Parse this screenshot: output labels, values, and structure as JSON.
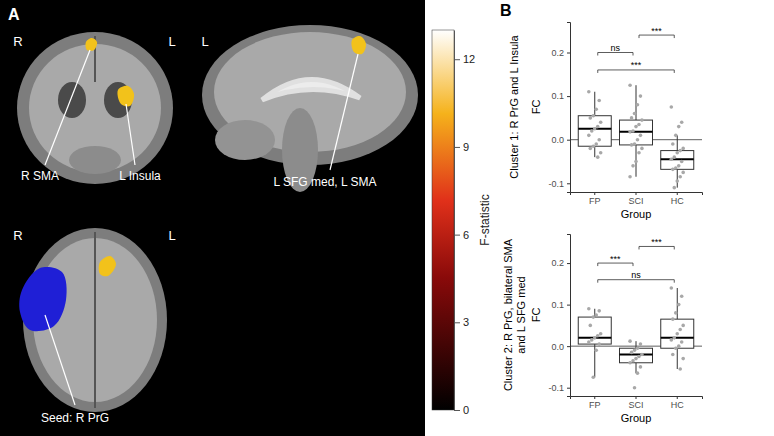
{
  "panel_a": {
    "label": "A",
    "views": [
      {
        "orientation": [
          "R",
          "L"
        ],
        "annotations": [
          "R SMA",
          "L Insula"
        ]
      },
      {
        "orientation": [
          "L"
        ],
        "annotations": [
          "L SFG med, L SMA"
        ]
      },
      {
        "orientation": [
          "R",
          "L"
        ],
        "annotations": [
          "Seed: R PrG"
        ]
      }
    ],
    "colorbar": {
      "label": "F-statistic",
      "range": [
        0,
        13
      ],
      "ticks": [
        0,
        3,
        6,
        9,
        12
      ]
    }
  },
  "panel_b_label": "B",
  "chart_data": [
    {
      "type": "box",
      "title": "Cluster 1: R PrG and L Insula",
      "x_label": "Group",
      "y_label": "FC",
      "categories": [
        "FP",
        "SCI",
        "HC"
      ],
      "ylim": [
        -0.12,
        0.27
      ],
      "yticks": [
        -0.1,
        {
          "value": 0,
          "label": "0.0"
        },
        0.1,
        0.2
      ],
      "hline": 0,
      "color": "#a8a8a8",
      "boxes": [
        {
          "q1": -0.015,
          "median": 0.025,
          "q3": 0.055,
          "whisker_low": -0.04,
          "whisker_high": 0.11
        },
        {
          "q1": -0.012,
          "median": 0.018,
          "q3": 0.045,
          "whisker_low": -0.085,
          "whisker_high": 0.125
        },
        {
          "q1": -0.068,
          "median": -0.045,
          "q3": -0.025,
          "whisker_low": -0.11,
          "whisker_high": 0.01
        }
      ],
      "points": [
        [
          0.11,
          0.09,
          0.07,
          0.055,
          0.05,
          0.04,
          0.03,
          0.025,
          0.02,
          0.01,
          0,
          -0.01,
          -0.015,
          -0.02,
          -0.03,
          -0.04
        ],
        [
          0.125,
          0.1,
          0.08,
          0.06,
          0.05,
          0.045,
          0.035,
          0.03,
          0.02,
          0.018,
          0.01,
          0,
          -0.01,
          -0.012,
          -0.02,
          -0.03,
          -0.05,
          -0.06,
          -0.085
        ],
        [
          0.075,
          0.04,
          0.03,
          0.01,
          -0.01,
          -0.02,
          -0.025,
          -0.03,
          -0.04,
          -0.045,
          -0.05,
          -0.06,
          -0.065,
          -0.068,
          -0.075,
          -0.085,
          -0.095,
          -0.11
        ]
      ],
      "comparisons": [
        {
          "groups": [
            0,
            2
          ],
          "label": "***",
          "y": 0.16
        },
        {
          "groups": [
            0,
            1
          ],
          "label": "ns",
          "y": 0.2
        },
        {
          "groups": [
            1,
            2
          ],
          "label": "***",
          "y": 0.24
        }
      ]
    },
    {
      "type": "box",
      "title": "Cluster 2: R PrG, bilateral SMA and L SFG med",
      "x_label": "Group",
      "y_label": "FC",
      "categories": [
        "FP",
        "SCI",
        "HC"
      ],
      "ylim": [
        -0.12,
        0.27
      ],
      "yticks": [
        -0.1,
        {
          "value": 0,
          "label": "0.0"
        },
        0.1,
        0.2
      ],
      "hline": 0,
      "color": "#a8a8a8",
      "boxes": [
        {
          "q1": 0.005,
          "median": 0.02,
          "q3": 0.07,
          "whisker_low": -0.075,
          "whisker_high": 0.09
        },
        {
          "q1": -0.04,
          "median": -0.02,
          "q3": -0.005,
          "whisker_low": -0.065,
          "whisker_high": 0.012
        },
        {
          "q1": -0.005,
          "median": 0.02,
          "q3": 0.065,
          "whisker_low": -0.055,
          "whisker_high": 0.14
        }
      ],
      "points": [
        [
          0.09,
          0.085,
          0.075,
          0.07,
          0.05,
          0.03,
          0.025,
          0.02,
          0.015,
          0.01,
          0.005,
          -0.01,
          -0.075
        ],
        [
          0.012,
          0.005,
          -0.005,
          -0.01,
          -0.015,
          -0.02,
          -0.025,
          -0.03,
          -0.035,
          -0.04,
          -0.05,
          -0.065,
          -0.1
        ],
        [
          0.14,
          0.12,
          0.1,
          0.08,
          0.065,
          0.05,
          0.04,
          0.03,
          0.02,
          0.015,
          0.01,
          0,
          -0.005,
          -0.02,
          -0.03,
          -0.055
        ]
      ],
      "comparisons": [
        {
          "groups": [
            0,
            2
          ],
          "label": "ns",
          "y": 0.16
        },
        {
          "groups": [
            0,
            1
          ],
          "label": "***",
          "y": 0.2
        },
        {
          "groups": [
            1,
            2
          ],
          "label": "***",
          "y": 0.24
        }
      ]
    }
  ]
}
